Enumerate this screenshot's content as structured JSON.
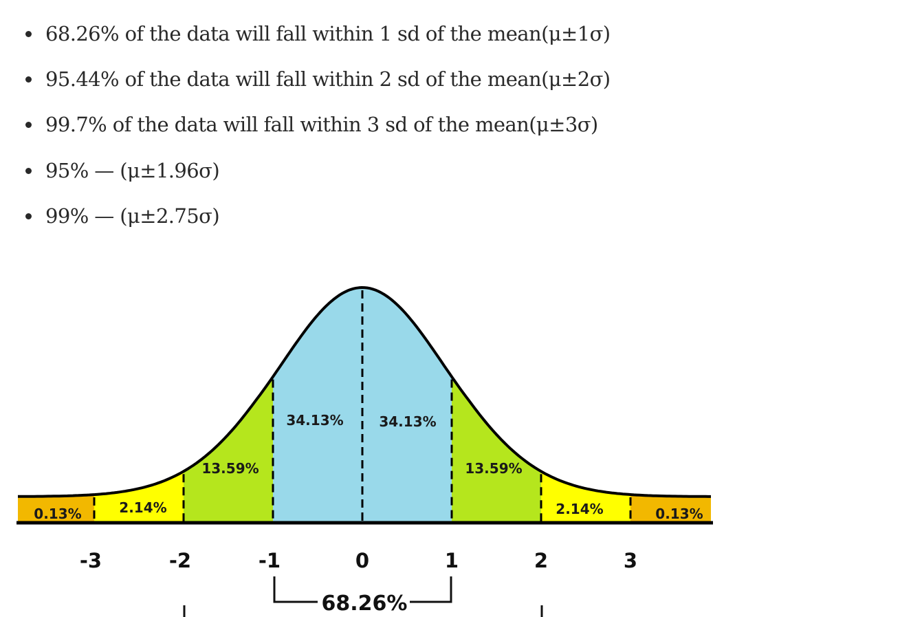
{
  "bullets": [
    "68.26% of the data will fall within 1 sd of the mean(μ±1σ)",
    "95.44% of the data will fall within 2 sd of the mean(μ±2σ)",
    "99.7% of the data will fall within 3 sd of the mean(μ±3σ)",
    "95% — (μ±1.96σ)",
    "99% — (μ±2.75σ)"
  ],
  "figure": {
    "regions": [
      {
        "from": -4,
        "to": -3,
        "label": "0.13%",
        "color": "#f2b800"
      },
      {
        "from": -3,
        "to": -2,
        "label": "2.14%",
        "color": "#ffff00"
      },
      {
        "from": -2,
        "to": -1,
        "label": "13.59%",
        "color": "#b5e61d"
      },
      {
        "from": -1,
        "to": 0,
        "label": "34.13%",
        "color": "#99d9ea"
      },
      {
        "from": 0,
        "to": 1,
        "label": "34.13%",
        "color": "#99d9ea"
      },
      {
        "from": 1,
        "to": 2,
        "label": "13.59%",
        "color": "#b5e61d"
      },
      {
        "from": 2,
        "to": 3,
        "label": "2.14%",
        "color": "#ffff00"
      },
      {
        "from": 3,
        "to": 4,
        "label": "0.13%",
        "color": "#f2b800"
      }
    ],
    "ticks": [
      "-3",
      "-2",
      "-1",
      "0",
      "1",
      "2",
      "3"
    ],
    "bracket_label": "68.26%"
  }
}
